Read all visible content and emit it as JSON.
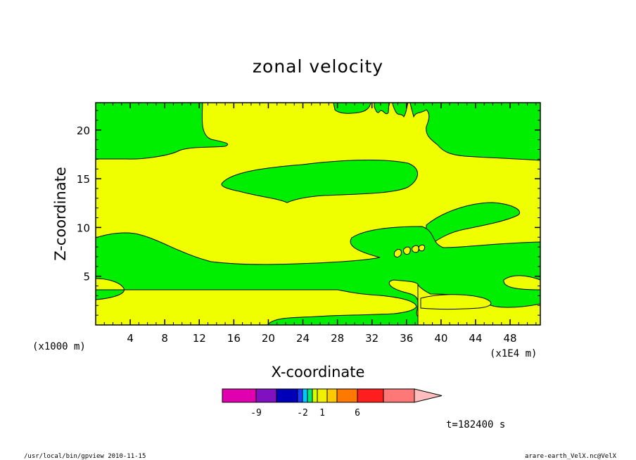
{
  "chart_data": {
    "type": "heatmap",
    "title": "zonal velocity",
    "xlabel": "X-coordinate",
    "ylabel": "Z-coordinate",
    "x_unit_left": "(x1000 m)",
    "x_unit_right": "(x1E4 m)",
    "xlim": [
      0,
      51.5
    ],
    "ylim": [
      0,
      22.8
    ],
    "x_ticks": [
      "4",
      "8",
      "12",
      "16",
      "20",
      "24",
      "28",
      "32",
      "36",
      "40",
      "44",
      "48"
    ],
    "y_ticks": [
      "5",
      "10",
      "15",
      "20"
    ],
    "regions": [
      {
        "name": "positive",
        "color": "#f0ff00"
      },
      {
        "name": "near-zero",
        "color": "#00ee00"
      }
    ],
    "colorbar": {
      "colors": [
        "#e000b0",
        "#8010c0",
        "#0000b8",
        "#1e3cff",
        "#00c8ff",
        "#00e878",
        "#d8ff00",
        "#f0f000",
        "#ffc800",
        "#ff7800",
        "#ff1e1e",
        "#ff7878",
        "#ffbebe"
      ],
      "labels": [
        "-9",
        "-2",
        "1",
        "6"
      ]
    },
    "time_label": "t=182400 s"
  },
  "footer": {
    "left": "/usr/local/bin/gpview 2010-11-15",
    "right": "arare-earth_VelX.nc@VelX"
  }
}
